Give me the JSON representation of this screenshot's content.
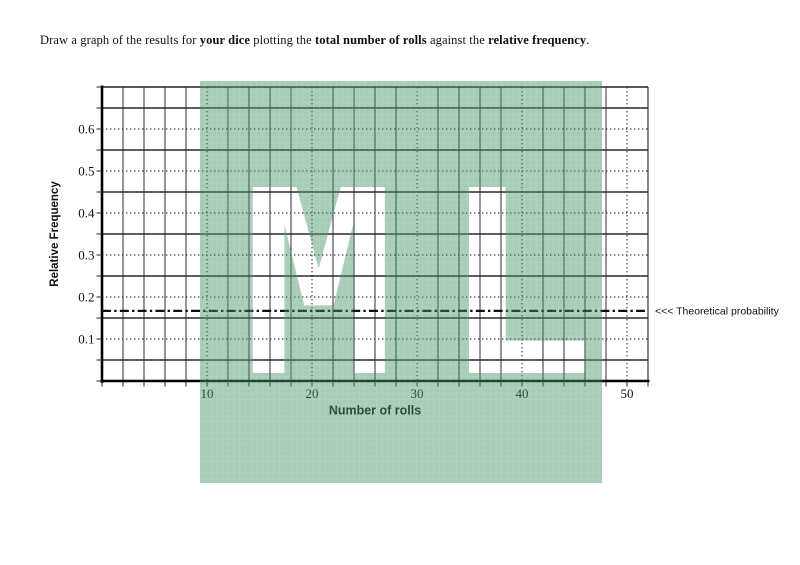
{
  "instruction": {
    "segments": [
      {
        "text": "Draw a graph of the results for ",
        "bold": false
      },
      {
        "text": "your dice",
        "bold": true
      },
      {
        "text": " plotting the ",
        "bold": false
      },
      {
        "text": "total number of rolls",
        "bold": true
      },
      {
        "text": " against the ",
        "bold": false
      },
      {
        "text": "relative frequency",
        "bold": true
      },
      {
        "text": ".",
        "bold": false
      }
    ]
  },
  "chart_data": {
    "type": "grid",
    "title": "",
    "xlabel": "Number of rolls",
    "ylabel": "Relative Frequency",
    "xlim": [
      0,
      52
    ],
    "ylim": [
      0,
      0.7
    ],
    "x_ticks": [
      10,
      20,
      30,
      40,
      50
    ],
    "y_ticks": [
      0.1,
      0.2,
      0.3,
      0.4,
      0.5,
      0.6
    ],
    "x_minor_step": 2,
    "y_minor_step": 0.05,
    "grid": true,
    "series": [],
    "reference_line": {
      "y": 0.167,
      "label": "<<<  Theoretical probability",
      "style": "dash-dot"
    }
  },
  "watermark": {
    "text": "ML",
    "overlay_color": "#408e61",
    "overlay_opacity": 0.45
  },
  "colors": {
    "grid_solid": "#2e2e2e",
    "grid_dotted": "#3a3a3a",
    "axis": "#000000",
    "text": "#111111"
  }
}
